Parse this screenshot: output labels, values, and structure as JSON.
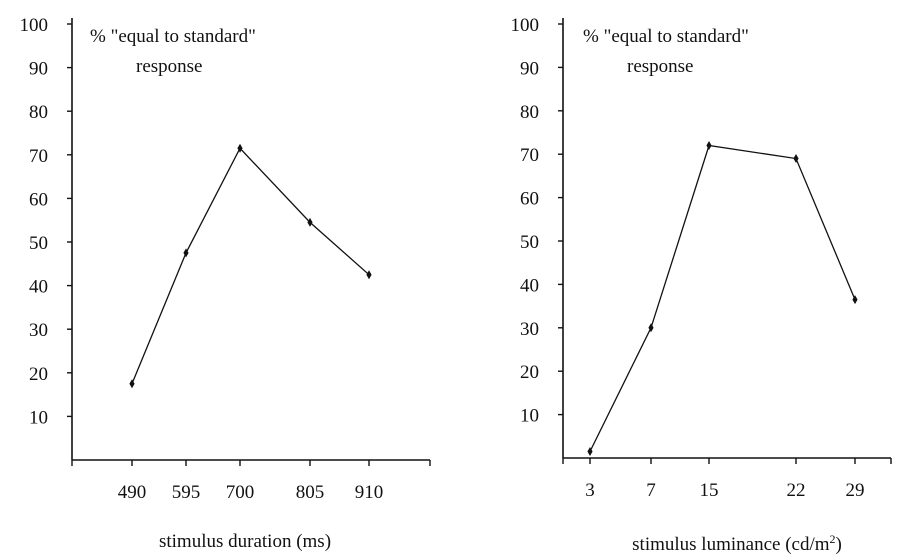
{
  "chart_data": [
    {
      "type": "line",
      "title": "",
      "ylabel": "% \"equal to standard\" response",
      "ylabel_lines": [
        "%  \"equal to standard\"",
        "response"
      ],
      "xlabel": "stimulus duration (ms)",
      "xlabel_main": "stimulus duration (ms)",
      "xlabel_sup": "",
      "xlabel_suffix": "",
      "ylim": [
        0,
        100
      ],
      "yticks": [
        10,
        20,
        30,
        40,
        50,
        60,
        70,
        80,
        90,
        100
      ],
      "x": [
        "490",
        "595",
        "700",
        "805",
        "910"
      ],
      "values": [
        17.5,
        47.5,
        71.5,
        54.5,
        42.5
      ],
      "grid": false,
      "legend": "none"
    },
    {
      "type": "line",
      "title": "",
      "ylabel": "% \"equal to standard\" response",
      "ylabel_lines": [
        "%  \"equal to standard\"",
        "response"
      ],
      "xlabel": "stimulus luminance (cd/m2)",
      "xlabel_main": "stimulus luminance (cd/m",
      "xlabel_sup": "2",
      "xlabel_suffix": ")",
      "ylim": [
        0,
        100
      ],
      "yticks": [
        10,
        20,
        30,
        40,
        50,
        60,
        70,
        80,
        90,
        100
      ],
      "x": [
        "3",
        "7",
        "15",
        "22",
        "29"
      ],
      "values": [
        1.5,
        30,
        72,
        69,
        36.5
      ],
      "grid": false,
      "legend": "none"
    }
  ]
}
